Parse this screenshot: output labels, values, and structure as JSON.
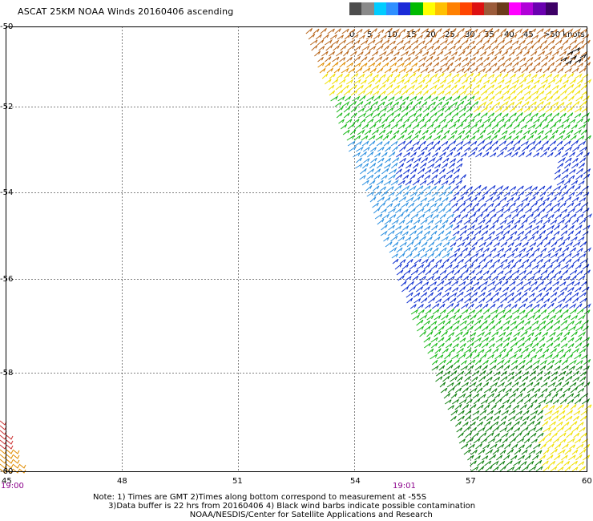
{
  "title": "ASCAT 25KM NOAA Winds 20160406 ascending",
  "colorbar": {
    "labels": [
      "0",
      "5",
      "10",
      "15",
      "20",
      "25",
      "30",
      "35",
      "40",
      "45",
      ">50 knots"
    ],
    "colors": [
      "#4d4d4d",
      "#8a8a8a",
      "#00ccff",
      "#2f8fff",
      "#1a2bd8",
      "#00bb00",
      "#ffff00",
      "#ffc000",
      "#ff8000",
      "#ff4500",
      "#dd1010",
      "#9b5b3a",
      "#6b3b1b",
      "#ff00ff",
      "#b000d8",
      "#6a00b0",
      "#3d0066"
    ]
  },
  "axes": {
    "lat_labels": [
      "-50",
      "-52",
      "-54",
      "-56",
      "-58",
      "-60"
    ],
    "lon_labels": [
      "45",
      "48",
      "51",
      "54",
      "57",
      "60"
    ]
  },
  "times": {
    "left": "19:00",
    "mid": "19:01"
  },
  "notes": [
    "Note: 1) Times are GMT 2)Times along bottom correspond to measurement at -55S",
    "      3)Data buffer is 22 hrs from 20160406 4) Black wind barbs indicate possible contamination",
    "                                      NOAA/NESDIS/Center for Satellite Applications and Research"
  ],
  "swath_legend_colors": {
    "brown": "#b8651a",
    "orange": "#e08c00",
    "yellow": "#f0e000",
    "green": "#15b815",
    "dkgreen": "#0b7d0b",
    "blue": "#1030d0",
    "cyan": "#2a8fe0",
    "black": "#000000",
    "red": "#cc3030"
  }
}
